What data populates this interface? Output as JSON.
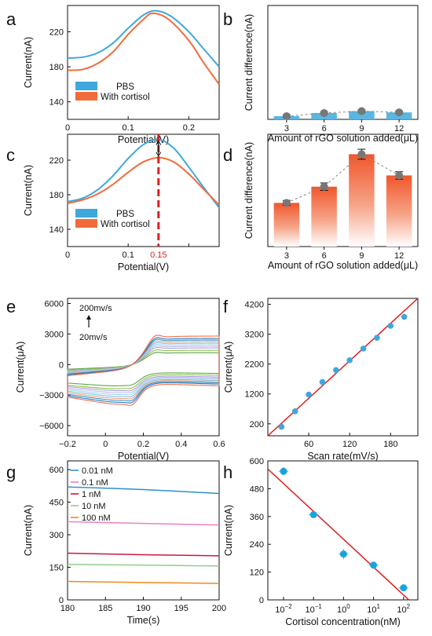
{
  "chart_data": [
    {
      "type": "line",
      "panel_label": "a",
      "xlabel": "Potential(V)",
      "ylabel": "Current(nA)",
      "xlim": [
        0,
        0.25
      ],
      "ylim": [
        120,
        250
      ],
      "xticks": [
        0,
        0.1,
        0.2
      ],
      "xtick_labels": [
        "0",
        "0.1",
        "0.2"
      ],
      "yticks": [
        140,
        180,
        220
      ],
      "legend": "bottom-left",
      "series": [
        {
          "name": "PBS",
          "color": "#3ea8dc",
          "x": [
            0,
            0.025,
            0.05,
            0.075,
            0.1,
            0.125,
            0.145,
            0.17,
            0.2,
            0.225,
            0.25
          ],
          "y": [
            190,
            191,
            196,
            207,
            224,
            239,
            244,
            238,
            220,
            200,
            180
          ]
        },
        {
          "name": "With cortisol",
          "color": "#f26b3a",
          "x": [
            0,
            0.025,
            0.05,
            0.075,
            0.1,
            0.125,
            0.14,
            0.165,
            0.2,
            0.225,
            0.25
          ],
          "y": [
            176,
            177,
            184,
            197,
            217,
            234,
            241,
            235,
            210,
            184,
            160
          ]
        }
      ]
    },
    {
      "type": "bar",
      "panel_label": "b",
      "xlabel": "Amount of rGO solution added(μL)",
      "ylabel": "Current difference(nA)",
      "categories": [
        "3",
        "6",
        "9",
        "12"
      ],
      "values": [
        2.5,
        5,
        6.5,
        5.5
      ],
      "errors": [
        1,
        1,
        1,
        1
      ],
      "ylim": [
        0,
        90
      ]
    },
    {
      "type": "line",
      "panel_label": "c",
      "xlabel": "Potential(V)",
      "ylabel": "Current(nA)",
      "xlim": [
        0,
        0.25
      ],
      "ylim": [
        120,
        250
      ],
      "xticks": [
        0,
        0.1,
        0.15,
        0.2
      ],
      "xtick_labels": [
        "0",
        "0.1",
        "0.15",
        ""
      ],
      "yticks": [
        140,
        180,
        220
      ],
      "legend": "bottom-left",
      "marker_x": 0.15,
      "series": [
        {
          "name": "PBS",
          "color": "#3ea8dc",
          "x": [
            0,
            0.025,
            0.05,
            0.075,
            0.1,
            0.125,
            0.15,
            0.175,
            0.2,
            0.225,
            0.25
          ],
          "y": [
            172,
            176,
            186,
            202,
            222,
            238,
            244,
            234,
            212,
            188,
            165
          ]
        },
        {
          "name": "With cortisol",
          "color": "#f26b3a",
          "x": [
            0,
            0.025,
            0.05,
            0.075,
            0.1,
            0.125,
            0.15,
            0.175,
            0.2,
            0.225,
            0.25
          ],
          "y": [
            170,
            174,
            181,
            192,
            206,
            218,
            223,
            218,
            204,
            186,
            168
          ]
        }
      ]
    },
    {
      "type": "bar",
      "panel_label": "d",
      "xlabel": "Amount of rGO solution added(μL)",
      "ylabel": "Current difference(nA)",
      "categories": [
        "3",
        "6",
        "9",
        "12"
      ],
      "values": [
        35,
        48,
        74,
        57
      ],
      "errors": [
        2,
        3,
        4,
        3
      ],
      "ylim": [
        0,
        90
      ]
    },
    {
      "type": "line",
      "panel_label": "e",
      "xlabel": "Potential(V)",
      "ylabel": "Current(μA)",
      "xlim": [
        -0.2,
        0.6
      ],
      "ylim": [
        -7000,
        6500
      ],
      "xticks": [
        -0.2,
        0,
        0.2,
        0.4,
        0.6
      ],
      "xtick_labels": [
        "−0.2",
        "0",
        "0.2",
        "0.4",
        "0.6"
      ],
      "yticks": [
        -6000,
        -3000,
        0,
        3000,
        6000
      ],
      "ytick_labels": [
        "−6000",
        "−3000",
        "0",
        "3000",
        "6000"
      ],
      "annotations": [
        "200mv/s",
        "20mv/s"
      ],
      "scan_rates_mv_s": [
        20,
        40,
        60,
        80,
        100,
        120,
        140,
        160,
        180,
        200
      ],
      "scan_colors": [
        "#5aa845",
        "#8bc34a",
        "#b0a3d8",
        "#c5b8e6",
        "#9ed6ec",
        "#7cc4e0",
        "#f2a07e",
        "#3a8fc2",
        "#2e7bbf",
        "#f06e4a"
      ],
      "peak_anodic_uA": [
        1500,
        1800,
        2100,
        2300,
        2500,
        2700,
        2900,
        3100,
        3300,
        3600
      ],
      "peak_cathodic_uA": [
        -2200,
        -2500,
        -2700,
        -2900,
        -3100,
        -3300,
        -3500,
        -3700,
        -3900,
        -4100
      ]
    },
    {
      "type": "scatter",
      "panel_label": "f",
      "xlabel": "Scan rate(mV/s)",
      "ylabel": "Current(μA)",
      "xlim": [
        0,
        220
      ],
      "ylim": [
        -200,
        4400
      ],
      "xticks": [
        60,
        120,
        180
      ],
      "yticks": [
        200,
        1200,
        2200,
        3200,
        4200
      ],
      "x": [
        20,
        40,
        60,
        80,
        100,
        120,
        140,
        160,
        180,
        200
      ],
      "y": [
        100,
        620,
        1180,
        1600,
        2000,
        2330,
        2720,
        3080,
        3480,
        3780
      ],
      "fit_line": {
        "x": [
          0,
          220
        ],
        "y": [
          -250,
          4400
        ],
        "color": "#e02020"
      }
    },
    {
      "type": "line",
      "panel_label": "g",
      "xlabel": "Time(s)",
      "ylabel": "Current(nA)",
      "xlim": [
        180,
        200
      ],
      "ylim": [
        0,
        640
      ],
      "xticks": [
        180,
        185,
        190,
        195,
        200
      ],
      "yticks": [
        0,
        150,
        300,
        450,
        600
      ],
      "legend": "top-left",
      "series": [
        {
          "name": "0.01 nM",
          "color": "#2e8fd0",
          "x": [
            180,
            190,
            200
          ],
          "y": [
            520,
            508,
            490
          ]
        },
        {
          "name": "0.1 nM",
          "color": "#f07fc0",
          "x": [
            180,
            190,
            200
          ],
          "y": [
            360,
            352,
            345
          ]
        },
        {
          "name": "1 nM",
          "color": "#c8193f",
          "x": [
            180,
            190,
            200
          ],
          "y": [
            215,
            208,
            203
          ]
        },
        {
          "name": "10 nM",
          "color": "#8fcf8a",
          "x": [
            180,
            190,
            200
          ],
          "y": [
            163,
            160,
            156
          ]
        },
        {
          "name": "100 nM",
          "color": "#f08a1f",
          "x": [
            180,
            190,
            200
          ],
          "y": [
            85,
            80,
            76
          ]
        }
      ]
    },
    {
      "type": "scatter",
      "panel_label": "h",
      "xlabel": "Cortisol concentration(nM)",
      "ylabel": "Current(nA)",
      "log_x": true,
      "xlim": [
        0.003,
        300
      ],
      "ylim": [
        0,
        600
      ],
      "xticks": [
        0.01,
        0.1,
        1,
        10,
        100
      ],
      "xtick_labels": [
        [
          "10",
          "−2"
        ],
        [
          "10",
          "−1"
        ],
        [
          "10",
          "0"
        ],
        [
          "10",
          "1"
        ],
        [
          "10",
          "2"
        ]
      ],
      "yticks": [
        0,
        120,
        240,
        360,
        480,
        600
      ],
      "x": [
        0.01,
        0.1,
        1,
        10,
        100
      ],
      "y": [
        555,
        368,
        198,
        150,
        52
      ],
      "errors": [
        18,
        14,
        22,
        10,
        10
      ],
      "fit_line": {
        "x": [
          0.003,
          150
        ],
        "y": [
          565,
          0
        ],
        "color": "#e02020"
      }
    }
  ]
}
